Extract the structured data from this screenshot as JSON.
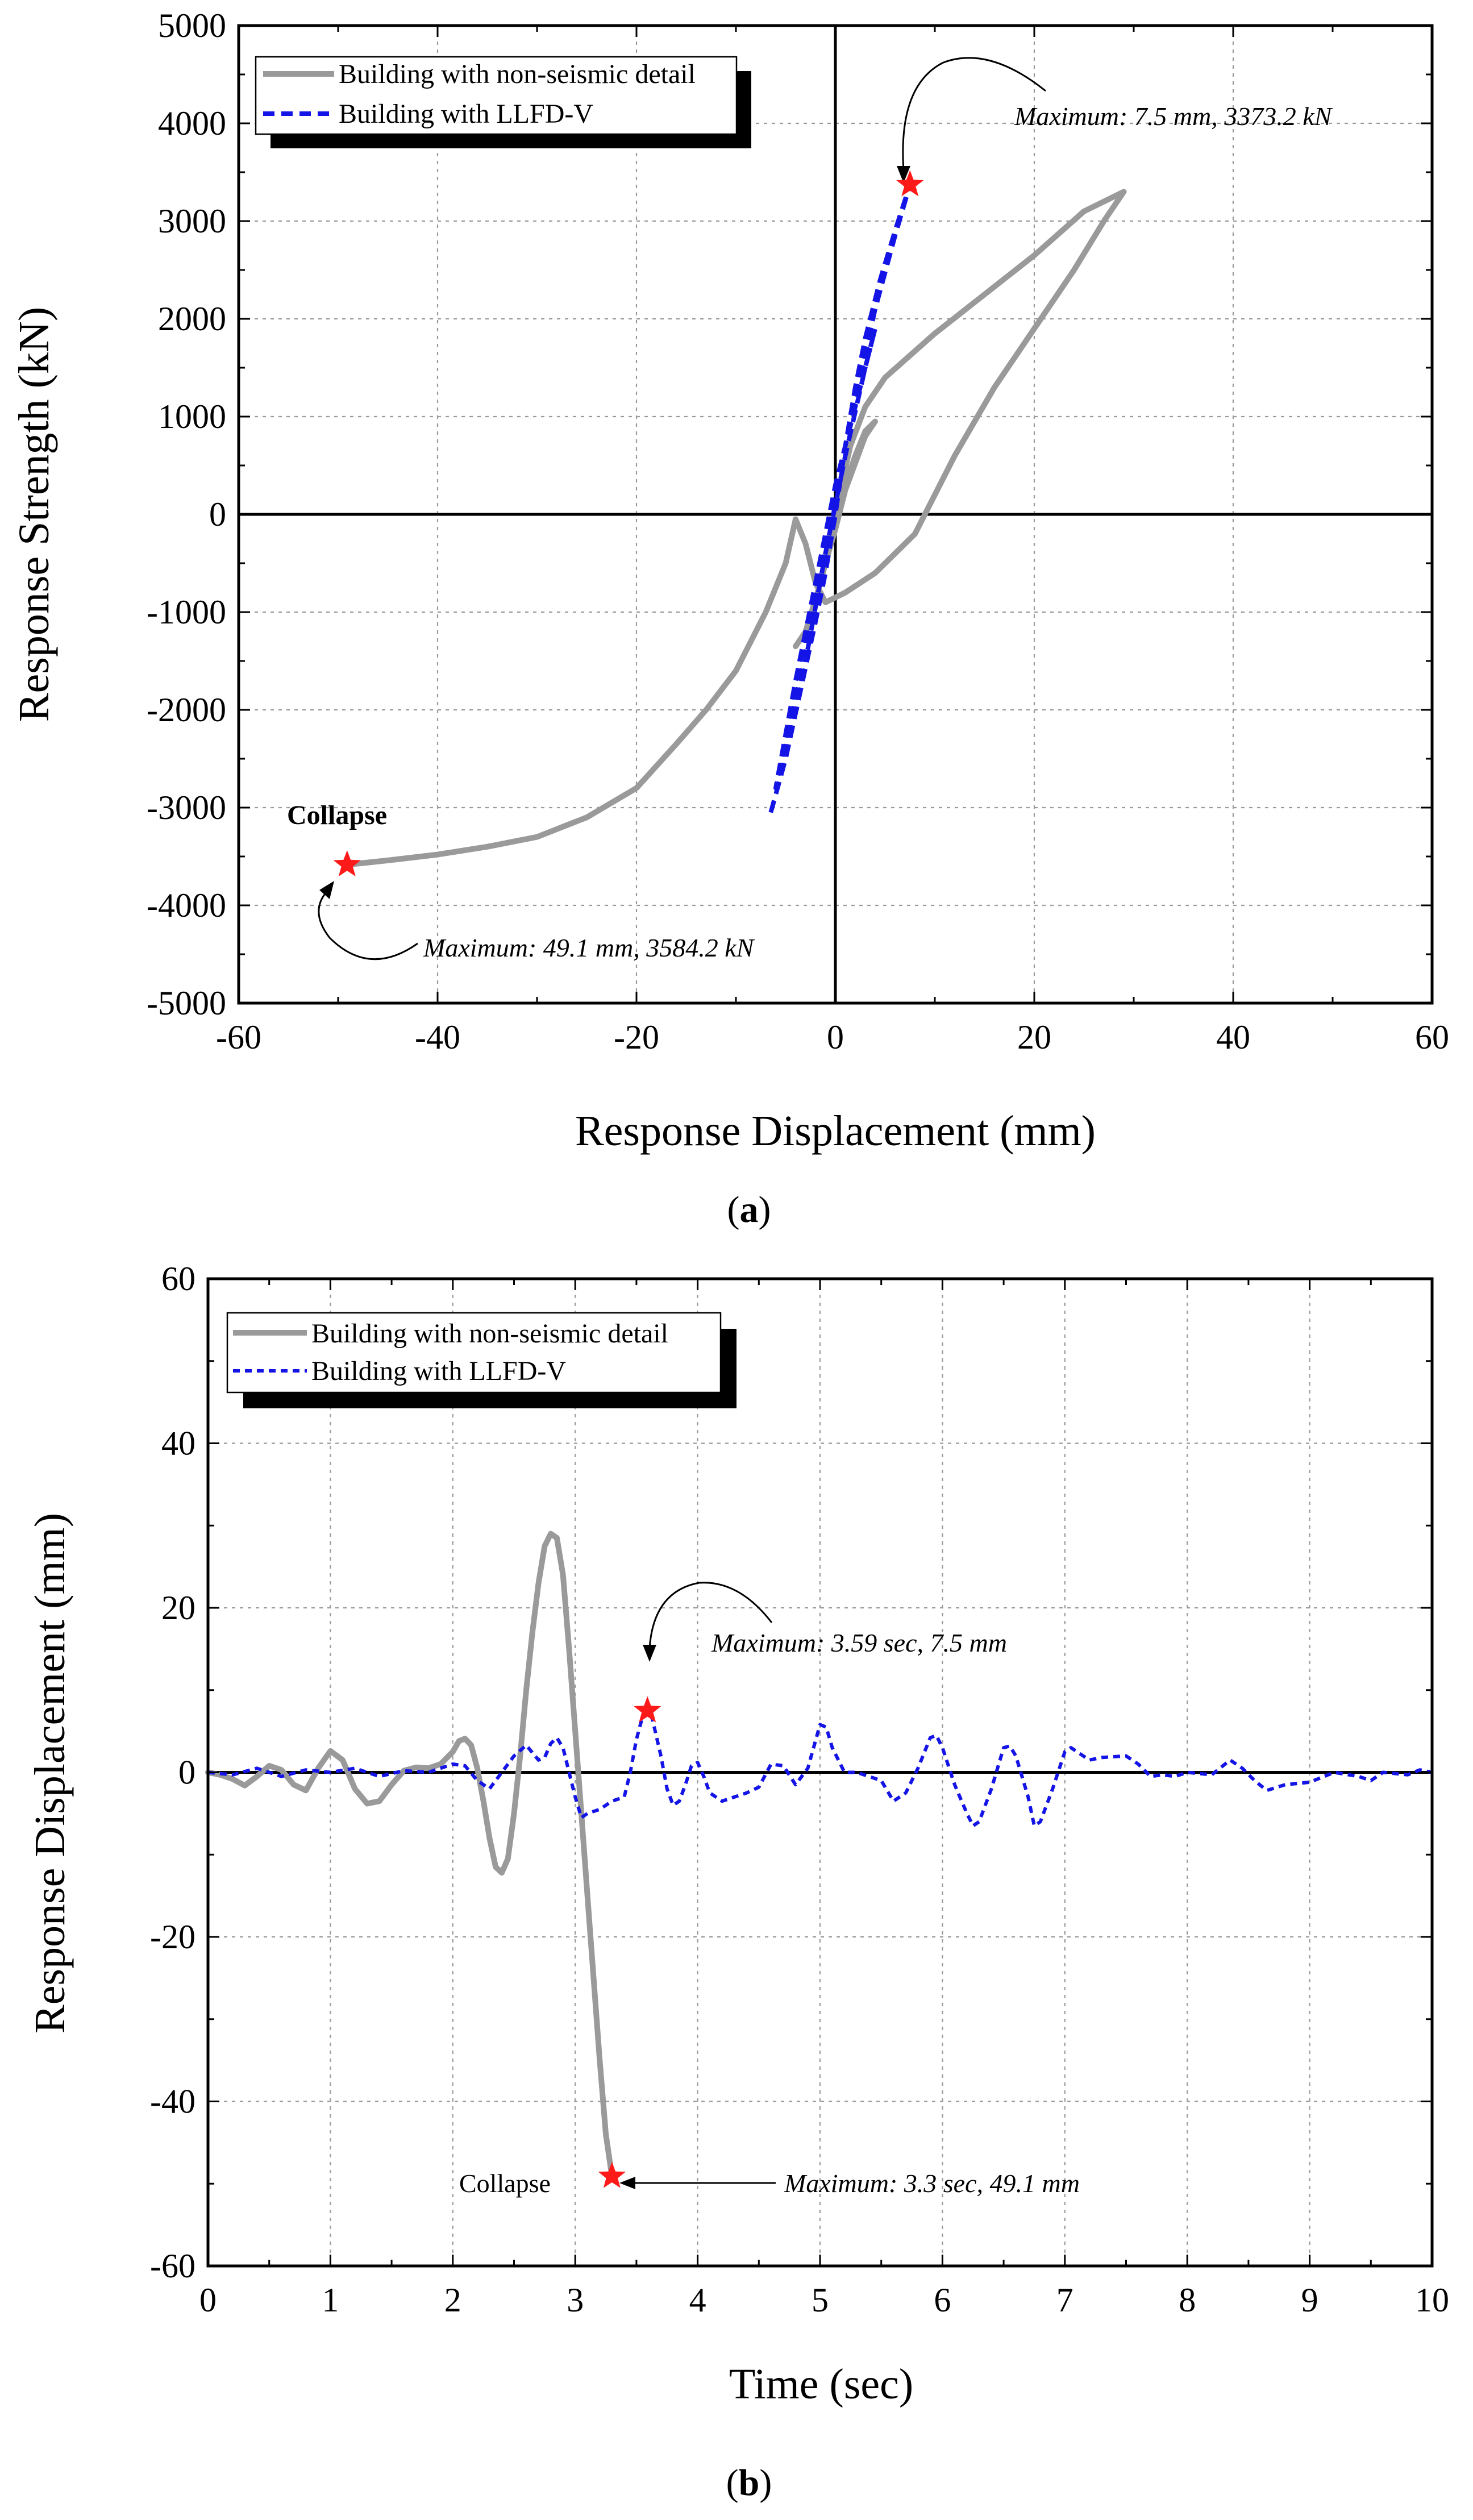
{
  "chart_data": [
    {
      "type": "line",
      "panel": "a",
      "caption_open": "(",
      "caption_letter": "a",
      "caption_close": ")",
      "title": "",
      "xlabel": "Response Displacement (mm)",
      "ylabel": "Response Strength (kN)",
      "xlim": [
        -60,
        60
      ],
      "ylim": [
        -5000,
        5000
      ],
      "xticks": [
        -60,
        -40,
        -20,
        0,
        20,
        40,
        60
      ],
      "yticks": [
        -5000,
        -4000,
        -3000,
        -2000,
        -1000,
        0,
        1000,
        2000,
        3000,
        4000,
        5000
      ],
      "grid": true,
      "legend_position": "top-left",
      "series": [
        {
          "name": "Building with non-seismic detail",
          "color": "#9a9a9a",
          "style": "solid",
          "points": [
            [
              0,
              0
            ],
            [
              1,
              300
            ],
            [
              2,
              600
            ],
            [
              3,
              850
            ],
            [
              4,
              950
            ],
            [
              3,
              800
            ],
            [
              1,
              250
            ],
            [
              0,
              -150
            ],
            [
              -1,
              -500
            ],
            [
              -2,
              -900
            ],
            [
              -3,
              -1200
            ],
            [
              -4,
              -1350
            ],
            [
              -3,
              -1200
            ],
            [
              -1.5,
              -700
            ],
            [
              -0.5,
              -200
            ],
            [
              0.5,
              250
            ],
            [
              1.5,
              700
            ],
            [
              3,
              1100
            ],
            [
              5,
              1400
            ],
            [
              10,
              1850
            ],
            [
              15,
              2250
            ],
            [
              20,
              2650
            ],
            [
              25,
              3100
            ],
            [
              28,
              3250
            ],
            [
              29,
              3300
            ],
            [
              27,
              3000
            ],
            [
              24,
              2500
            ],
            [
              20,
              1900
            ],
            [
              16,
              1300
            ],
            [
              12,
              600
            ],
            [
              8,
              -200
            ],
            [
              4,
              -600
            ],
            [
              1,
              -800
            ],
            [
              -1,
              -900
            ],
            [
              -2,
              -700
            ],
            [
              -3,
              -300
            ],
            [
              -4,
              -50
            ],
            [
              -5,
              -500
            ],
            [
              -7,
              -1000
            ],
            [
              -10,
              -1600
            ],
            [
              -13,
              -2000
            ],
            [
              -16,
              -2350
            ],
            [
              -20,
              -2800
            ],
            [
              -25,
              -3100
            ],
            [
              -30,
              -3300
            ],
            [
              -35,
              -3400
            ],
            [
              -40,
              -3480
            ],
            [
              -45,
              -3540
            ],
            [
              -49.1,
              -3584.2
            ]
          ]
        },
        {
          "name": "Building with LLFD-V",
          "color": "#1414e6",
          "style": "dashed",
          "points": [
            [
              -6.5,
              -3050
            ],
            [
              -5,
              -2500
            ],
            [
              -3.5,
              -1800
            ],
            [
              -2,
              -1100
            ],
            [
              -1,
              -600
            ],
            [
              0,
              0
            ],
            [
              1,
              700
            ],
            [
              2,
              1300
            ],
            [
              3,
              1800
            ],
            [
              4.5,
              2400
            ],
            [
              6,
              2900
            ],
            [
              7.5,
              3373.2
            ],
            [
              6,
              2850
            ],
            [
              4,
              2100
            ],
            [
              2,
              1200
            ],
            [
              0,
              200
            ],
            [
              -2,
              -900
            ],
            [
              -4,
              -1900
            ],
            [
              -5.5,
              -2600
            ],
            [
              -6,
              -2800
            ],
            [
              -4,
              -1700
            ],
            [
              -2,
              -700
            ],
            [
              0,
              300
            ],
            [
              2,
              1100
            ],
            [
              4,
              1900
            ],
            [
              3,
              1500
            ],
            [
              1,
              600
            ],
            [
              -1,
              -400
            ],
            [
              -3,
              -1500
            ]
          ]
        }
      ],
      "markers": [
        {
          "x": 7.5,
          "y": 3373.2,
          "label": "Maximum: 7.5 mm, 3373.2 kN"
        },
        {
          "x": -49.1,
          "y": -3584.2,
          "label": "Maximum: 49.1 mm, 3584.2 kN",
          "extra_label": "Collapse"
        }
      ]
    },
    {
      "type": "line",
      "panel": "b",
      "caption_open": "(",
      "caption_letter": "b",
      "caption_close": ")",
      "title": "",
      "xlabel": "Time (sec)",
      "ylabel": "Response Displacement (mm)",
      "xlim": [
        0,
        10
      ],
      "ylim": [
        -60,
        60
      ],
      "xticks": [
        0,
        1,
        2,
        3,
        4,
        5,
        6,
        7,
        8,
        9,
        10
      ],
      "yticks": [
        -60,
        -40,
        -20,
        0,
        20,
        40,
        60
      ],
      "grid": true,
      "legend_position": "top-left",
      "series": [
        {
          "name": "Building with non-seismic detail",
          "color": "#9a9a9a",
          "style": "solid",
          "points": [
            [
              0,
              0
            ],
            [
              0.1,
              -0.3
            ],
            [
              0.2,
              -0.8
            ],
            [
              0.3,
              -1.6
            ],
            [
              0.4,
              -0.5
            ],
            [
              0.5,
              0.8
            ],
            [
              0.6,
              0.3
            ],
            [
              0.7,
              -1.5
            ],
            [
              0.8,
              -2.2
            ],
            [
              0.9,
              0.5
            ],
            [
              1,
              2.6
            ],
            [
              1.1,
              1.5
            ],
            [
              1.2,
              -2
            ],
            [
              1.3,
              -3.8
            ],
            [
              1.4,
              -3.5
            ],
            [
              1.5,
              -1.5
            ],
            [
              1.6,
              0.2
            ],
            [
              1.7,
              0.6
            ],
            [
              1.8,
              0.5
            ],
            [
              1.9,
              1
            ],
            [
              2,
              2.5
            ],
            [
              2.05,
              3.8
            ],
            [
              2.1,
              4.1
            ],
            [
              2.15,
              3.3
            ],
            [
              2.2,
              0.5
            ],
            [
              2.25,
              -3.5
            ],
            [
              2.3,
              -8
            ],
            [
              2.35,
              -11.5
            ],
            [
              2.4,
              -12.2
            ],
            [
              2.45,
              -10.5
            ],
            [
              2.5,
              -5
            ],
            [
              2.55,
              2
            ],
            [
              2.6,
              10
            ],
            [
              2.65,
              17
            ],
            [
              2.7,
              23
            ],
            [
              2.75,
              27.5
            ],
            [
              2.8,
              29
            ],
            [
              2.85,
              28.5
            ],
            [
              2.9,
              24
            ],
            [
              2.95,
              15
            ],
            [
              3,
              5
            ],
            [
              3.05,
              -5
            ],
            [
              3.1,
              -15
            ],
            [
              3.15,
              -25
            ],
            [
              3.2,
              -35
            ],
            [
              3.25,
              -44
            ],
            [
              3.3,
              -49.1
            ]
          ]
        },
        {
          "name": "Building with LLFD-V",
          "color": "#1414e6",
          "style": "dashed",
          "points": [
            [
              0,
              0
            ],
            [
              0.2,
              -0.3
            ],
            [
              0.4,
              0.5
            ],
            [
              0.6,
              -0.5
            ],
            [
              0.8,
              0.3
            ],
            [
              1,
              0
            ],
            [
              1.2,
              0.5
            ],
            [
              1.4,
              -0.5
            ],
            [
              1.6,
              0.2
            ],
            [
              1.8,
              0
            ],
            [
              2,
              1
            ],
            [
              2.1,
              0.8
            ],
            [
              2.2,
              -1
            ],
            [
              2.3,
              -2
            ],
            [
              2.4,
              0
            ],
            [
              2.5,
              2
            ],
            [
              2.6,
              3.3
            ],
            [
              2.7,
              1.5
            ],
            [
              2.75,
              1.8
            ],
            [
              2.8,
              3.5
            ],
            [
              2.85,
              4.2
            ],
            [
              2.9,
              3
            ],
            [
              2.95,
              0
            ],
            [
              3,
              -3
            ],
            [
              3.05,
              -5.5
            ],
            [
              3.1,
              -5
            ],
            [
              3.2,
              -4.5
            ],
            [
              3.3,
              -3.5
            ],
            [
              3.4,
              -3
            ],
            [
              3.45,
              0
            ],
            [
              3.5,
              4
            ],
            [
              3.55,
              6.8
            ],
            [
              3.59,
              7.5
            ],
            [
              3.63,
              6.5
            ],
            [
              3.7,
              2
            ],
            [
              3.75,
              -2
            ],
            [
              3.8,
              -4
            ],
            [
              3.85,
              -3.5
            ],
            [
              3.9,
              -1.5
            ],
            [
              3.95,
              0.8
            ],
            [
              4,
              1.2
            ],
            [
              4.05,
              -0.5
            ],
            [
              4.1,
              -2.5
            ],
            [
              4.2,
              -3.5
            ],
            [
              4.3,
              -3
            ],
            [
              4.4,
              -2.5
            ],
            [
              4.5,
              -1.8
            ],
            [
              4.6,
              1
            ],
            [
              4.7,
              0.8
            ],
            [
              4.8,
              -1.5
            ],
            [
              4.9,
              0.5
            ],
            [
              5,
              5.8
            ],
            [
              5.05,
              5.5
            ],
            [
              5.1,
              3
            ],
            [
              5.2,
              0
            ],
            [
              5.3,
              0
            ],
            [
              5.4,
              -0.5
            ],
            [
              5.5,
              -1
            ],
            [
              5.6,
              -3.5
            ],
            [
              5.7,
              -2.5
            ],
            [
              5.8,
              0.5
            ],
            [
              5.9,
              4.2
            ],
            [
              5.95,
              4.5
            ],
            [
              6,
              3
            ],
            [
              6.1,
              -1.5
            ],
            [
              6.2,
              -5
            ],
            [
              6.25,
              -6.5
            ],
            [
              6.3,
              -6
            ],
            [
              6.4,
              -2
            ],
            [
              6.5,
              3
            ],
            [
              6.55,
              3.2
            ],
            [
              6.6,
              2
            ],
            [
              6.7,
              -3
            ],
            [
              6.75,
              -6.5
            ],
            [
              6.8,
              -6
            ],
            [
              6.9,
              -2
            ],
            [
              7,
              2.5
            ],
            [
              7.05,
              3
            ],
            [
              7.1,
              2.5
            ],
            [
              7.2,
              1.5
            ],
            [
              7.3,
              1.8
            ],
            [
              7.5,
              2
            ],
            [
              7.6,
              1
            ],
            [
              7.7,
              -0.5
            ],
            [
              7.8,
              -0.3
            ],
            [
              7.9,
              -0.5
            ],
            [
              8,
              0
            ],
            [
              8.2,
              -0.3
            ],
            [
              8.35,
              1.5
            ],
            [
              8.45,
              0.5
            ],
            [
              8.55,
              -1
            ],
            [
              8.65,
              -2.2
            ],
            [
              8.8,
              -1.5
            ],
            [
              9,
              -1.2
            ],
            [
              9.2,
              0
            ],
            [
              9.4,
              -0.5
            ],
            [
              9.5,
              -1
            ],
            [
              9.6,
              0
            ],
            [
              9.8,
              -0.3
            ],
            [
              9.9,
              0.3
            ],
            [
              10,
              0
            ]
          ]
        }
      ],
      "markers": [
        {
          "x": 3.59,
          "y": 7.5,
          "label": "Maximum: 3.59 sec, 7.5 mm"
        },
        {
          "x": 3.3,
          "y": -49.1,
          "label": "Maximum: 3.3 sec, 49.1 mm",
          "extra_label": "Collapse"
        }
      ]
    }
  ]
}
